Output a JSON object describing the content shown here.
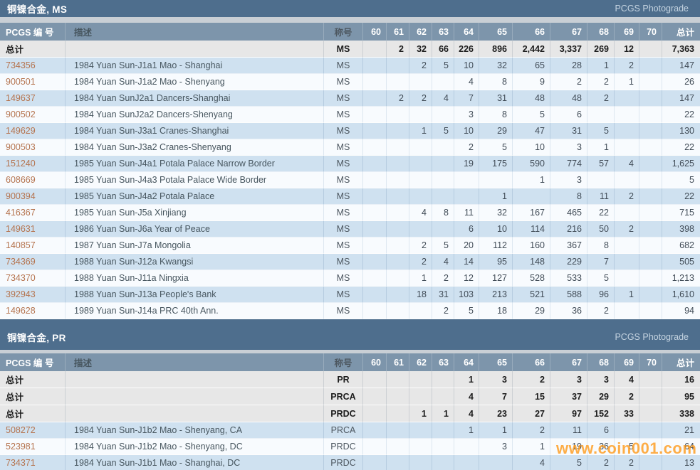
{
  "watermark": "www.coin001.com",
  "photograde": "PCGS Photograde",
  "columns": {
    "pcgs": "PCGS 编 号",
    "desc": "描述",
    "designation": "称号",
    "grades": [
      "60",
      "61",
      "62",
      "63",
      "64",
      "65",
      "66",
      "67",
      "68",
      "69",
      "70"
    ],
    "total": "总计"
  },
  "sections": [
    {
      "id": "ms",
      "title": "铜镍合金, MS",
      "rows": [
        {
          "type": "total",
          "pcgs": "总计",
          "desc": "",
          "designation": "MS",
          "grades": [
            "",
            "2",
            "32",
            "66",
            "226",
            "896",
            "2,442",
            "3,337",
            "269",
            "12",
            ""
          ],
          "total": "7,363"
        },
        {
          "type": "data",
          "pcgs": "734356",
          "desc": "1984 Yuan Sun-J1a1 Mao - Shanghai",
          "designation": "MS",
          "grades": [
            "",
            "",
            "2",
            "5",
            "10",
            "32",
            "65",
            "28",
            "1",
            "2",
            ""
          ],
          "total": "147"
        },
        {
          "type": "data",
          "pcgs": "900501",
          "desc": "1984 Yuan Sun-J1a2 Mao - Shenyang",
          "designation": "MS",
          "grades": [
            "",
            "",
            "",
            "",
            "4",
            "8",
            "9",
            "2",
            "2",
            "1",
            ""
          ],
          "total": "26"
        },
        {
          "type": "data",
          "pcgs": "149637",
          "desc": "1984 Yuan SunJ2a1 Dancers-Shanghai",
          "designation": "MS",
          "grades": [
            "",
            "2",
            "2",
            "4",
            "7",
            "31",
            "48",
            "48",
            "2",
            "",
            ""
          ],
          "total": "147"
        },
        {
          "type": "data",
          "pcgs": "900502",
          "desc": "1984 Yuan SunJ2a2 Dancers-Shenyang",
          "designation": "MS",
          "grades": [
            "",
            "",
            "",
            "",
            "3",
            "8",
            "5",
            "6",
            "",
            "",
            ""
          ],
          "total": "22"
        },
        {
          "type": "data",
          "pcgs": "149629",
          "desc": "1984 Yuan Sun-J3a1 Cranes-Shanghai",
          "designation": "MS",
          "grades": [
            "",
            "",
            "1",
            "5",
            "10",
            "29",
            "47",
            "31",
            "5",
            "",
            ""
          ],
          "total": "130"
        },
        {
          "type": "data",
          "pcgs": "900503",
          "desc": "1984 Yuan Sun-J3a2 Cranes-Shenyang",
          "designation": "MS",
          "grades": [
            "",
            "",
            "",
            "",
            "2",
            "5",
            "10",
            "3",
            "1",
            "",
            ""
          ],
          "total": "22"
        },
        {
          "type": "data",
          "pcgs": "151240",
          "desc": "1985 Yuan Sun-J4a1 Potala Palace Narrow Border",
          "designation": "MS",
          "grades": [
            "",
            "",
            "",
            "",
            "19",
            "175",
            "590",
            "774",
            "57",
            "4",
            ""
          ],
          "total": "1,625"
        },
        {
          "type": "data",
          "pcgs": "608669",
          "desc": "1985 Yuan Sun-J4a3 Potala Palace Wide Border",
          "designation": "MS",
          "grades": [
            "",
            "",
            "",
            "",
            "",
            "",
            "1",
            "3",
            "",
            "",
            ""
          ],
          "total": "5"
        },
        {
          "type": "data",
          "pcgs": "900394",
          "desc": "1985 Yuan Sun-J4a2 Potala Palace",
          "designation": "MS",
          "grades": [
            "",
            "",
            "",
            "",
            "",
            "1",
            "",
            "8",
            "11",
            "2",
            ""
          ],
          "total": "22"
        },
        {
          "type": "data",
          "pcgs": "416367",
          "desc": "1985 Yuan Sun-J5a Xinjiang",
          "designation": "MS",
          "grades": [
            "",
            "",
            "4",
            "8",
            "11",
            "32",
            "167",
            "465",
            "22",
            "",
            ""
          ],
          "total": "715"
        },
        {
          "type": "data",
          "pcgs": "149631",
          "desc": "1986 Yuan Sun-J6a Year of Peace",
          "designation": "MS",
          "grades": [
            "",
            "",
            "",
            "",
            "6",
            "10",
            "114",
            "216",
            "50",
            "2",
            ""
          ],
          "total": "398"
        },
        {
          "type": "data",
          "pcgs": "140857",
          "desc": "1987 Yuan Sun-J7a Mongolia",
          "designation": "MS",
          "grades": [
            "",
            "",
            "2",
            "5",
            "20",
            "112",
            "160",
            "367",
            "8",
            "",
            ""
          ],
          "total": "682"
        },
        {
          "type": "data",
          "pcgs": "734369",
          "desc": "1988 Yuan Sun-J12a Kwangsi",
          "designation": "MS",
          "grades": [
            "",
            "",
            "2",
            "4",
            "14",
            "95",
            "148",
            "229",
            "7",
            "",
            ""
          ],
          "total": "505"
        },
        {
          "type": "data",
          "pcgs": "734370",
          "desc": "1988 Yuan Sun-J11a Ningxia",
          "designation": "MS",
          "grades": [
            "",
            "",
            "1",
            "2",
            "12",
            "127",
            "528",
            "533",
            "5",
            "",
            ""
          ],
          "total": "1,213"
        },
        {
          "type": "data",
          "pcgs": "392943",
          "desc": "1988 Yuan Sun-J13a People's Bank",
          "designation": "MS",
          "grades": [
            "",
            "",
            "18",
            "31",
            "103",
            "213",
            "521",
            "588",
            "96",
            "1",
            ""
          ],
          "total": "1,610"
        },
        {
          "type": "data",
          "pcgs": "149628",
          "desc": "1989 Yuan Sun-J14a PRC 40th Ann.",
          "designation": "MS",
          "grades": [
            "",
            "",
            "",
            "2",
            "5",
            "18",
            "29",
            "36",
            "2",
            "",
            ""
          ],
          "total": "94"
        }
      ]
    },
    {
      "id": "pr",
      "title": "铜镍合金, PR",
      "rows": [
        {
          "type": "total",
          "pcgs": "总计",
          "desc": "",
          "designation": "PR",
          "grades": [
            "",
            "",
            "",
            "",
            "1",
            "3",
            "2",
            "3",
            "3",
            "4",
            ""
          ],
          "total": "16"
        },
        {
          "type": "total",
          "pcgs": "总计",
          "desc": "",
          "designation": "PRCA",
          "grades": [
            "",
            "",
            "",
            "",
            "4",
            "7",
            "15",
            "37",
            "29",
            "2",
            ""
          ],
          "total": "95"
        },
        {
          "type": "total",
          "pcgs": "总计",
          "desc": "",
          "designation": "PRDC",
          "grades": [
            "",
            "",
            "1",
            "1",
            "4",
            "23",
            "27",
            "97",
            "152",
            "33",
            ""
          ],
          "total": "338"
        },
        {
          "type": "data",
          "pcgs": "508272",
          "desc": "1984 Yuan Sun-J1b2 Mao - Shenyang, CA",
          "designation": "PRCA",
          "grades": [
            "",
            "",
            "",
            "",
            "1",
            "1",
            "2",
            "11",
            "6",
            "",
            ""
          ],
          "total": "21"
        },
        {
          "type": "data",
          "pcgs": "523981",
          "desc": "1984 Yuan Sun-J1b2 Mao - Shenyang, DC",
          "designation": "PRDC",
          "grades": [
            "",
            "",
            "",
            "",
            "",
            "3",
            "1",
            "19",
            "36",
            "5",
            ""
          ],
          "total": "64"
        },
        {
          "type": "data",
          "pcgs": "734371",
          "desc": "1984 Yuan Sun-J1b1 Mao - Shanghai, DC",
          "designation": "PRDC",
          "grades": [
            "",
            "",
            "",
            "",
            "",
            "",
            "4",
            "5",
            "2",
            "2",
            ""
          ],
          "total": "13"
        }
      ]
    }
  ],
  "layout_colors": {
    "title_bar": "#4e6e8d",
    "header_row": "#7d95ab",
    "total_row": "#e7e7e7",
    "row_blue": "#cfe1f0",
    "row_white": "#f8fbfe",
    "pcgs_link": "#b5744f",
    "watermark_orange": "#ff9d1f"
  }
}
